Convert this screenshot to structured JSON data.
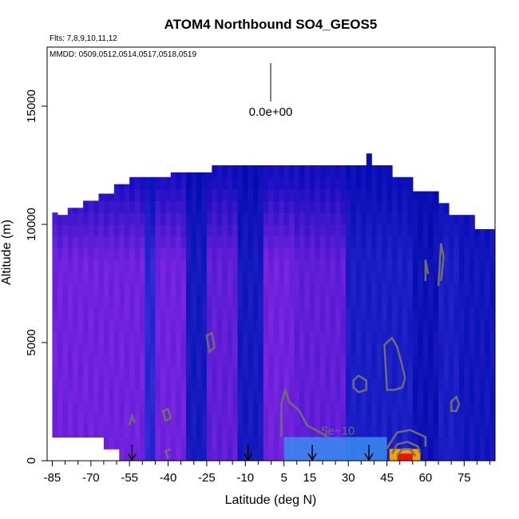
{
  "chart_data": {
    "type": "heatmap",
    "title": "ATOM4 Northbound SO4_GEOS5",
    "flights_text": "Flts: 7,8,9,10,11,12",
    "dates_text": "MMDD: 0509,0512,0514,0517,0518,0519",
    "xlabel": "Latitude (deg N)",
    "ylabel": "Altitude (m)",
    "xlim": [
      -87,
      87
    ],
    "ylim": [
      0,
      17500
    ],
    "xticks": [
      -85,
      -70,
      -55,
      -40,
      -25,
      -10,
      5,
      15,
      30,
      45,
      60,
      75
    ],
    "xtick_labels": [
      "-85",
      "-70",
      "-55",
      "-40",
      "-25",
      "-10",
      "5",
      "15",
      "30",
      "45",
      "60",
      "75"
    ],
    "yticks": [
      0,
      5000,
      10000,
      15000
    ],
    "ytick_labels": [
      "0",
      "5000",
      "10000",
      "15000"
    ],
    "scale_label": "0.0e+00",
    "contour_label": "5e−10",
    "arrow_latitudes": [
      -54,
      -9,
      16,
      38
    ],
    "colors": {
      "deep_blue": "#0a10b8",
      "blue": "#1a2ad8",
      "purple": "#6a24d8",
      "violet": "#7a28e0",
      "light_blue": "#3a8cf0",
      "contour": "#6e6e6e",
      "hot_red": "#e81800",
      "hot_orange": "#f0a000"
    }
  }
}
